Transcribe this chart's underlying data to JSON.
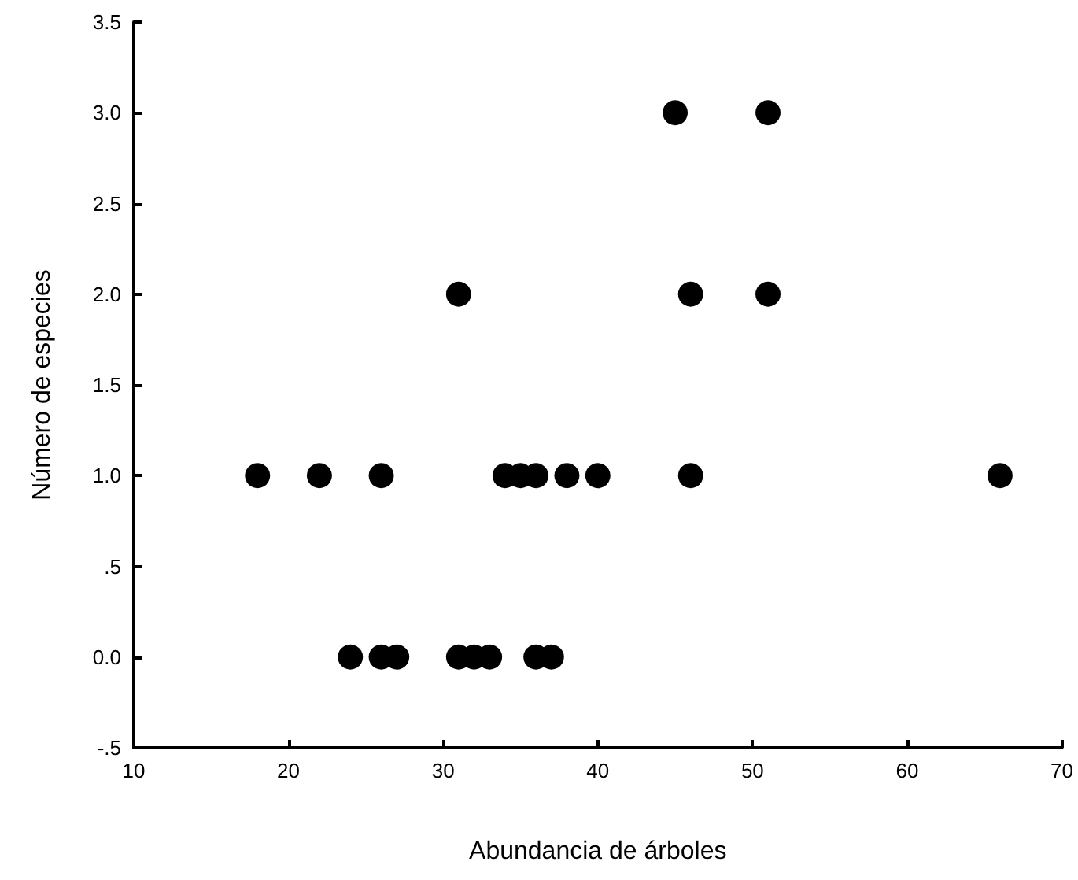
{
  "chart_data": {
    "type": "scatter",
    "xlabel": "Abundancia de árboles",
    "ylabel": "Número de especies",
    "x": [
      18,
      22,
      26,
      34,
      35,
      36,
      38,
      40,
      46,
      66,
      24,
      26,
      27,
      31,
      32,
      33,
      36,
      37,
      31,
      46,
      51,
      45,
      51
    ],
    "values": [
      1,
      1,
      1,
      1,
      1,
      1,
      1,
      1,
      1,
      1,
      0,
      0,
      0,
      0,
      0,
      0,
      0,
      0,
      2,
      2,
      2,
      3,
      3
    ],
    "color": "#000000",
    "marker": "circle",
    "grid": false,
    "xlim": [
      10,
      70
    ],
    "xticks": [
      10,
      20,
      30,
      40,
      50,
      60,
      70
    ],
    "ylim": [
      -0.5,
      3.5
    ],
    "yticks": [
      {
        "value": -0.5,
        "label": "-.5"
      },
      {
        "value": 0,
        "label": "0.0"
      },
      {
        "value": 0.5,
        "label": ".5"
      },
      {
        "value": 1,
        "label": "1.0"
      },
      {
        "value": 1.5,
        "label": "1.5"
      },
      {
        "value": 2,
        "label": "2.0"
      },
      {
        "value": 2.5,
        "label": "2.5"
      },
      {
        "value": 3,
        "label": "3.0"
      },
      3.5
    ]
  }
}
